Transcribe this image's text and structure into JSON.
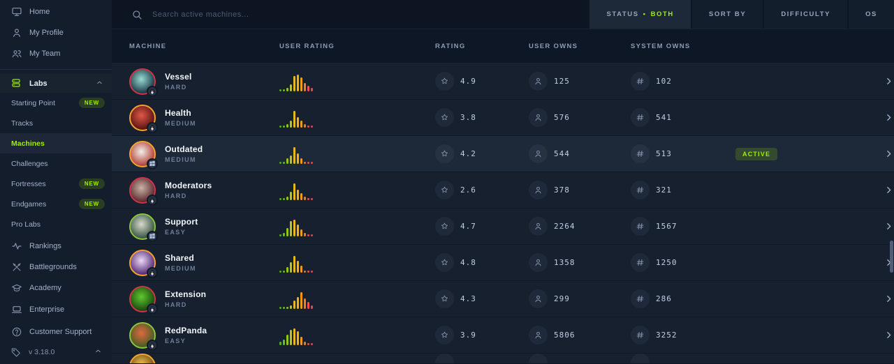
{
  "colors": {
    "accent_green": "#9fef00",
    "difficulty_ring": {
      "easy": "#8bc53f",
      "medium": "#f5a32e",
      "hard": "#d13345"
    },
    "histogram_palette": [
      "#4cb218",
      "#63c21a",
      "#8cc918",
      "#b9c51b",
      "#e5b81d",
      "#f2ae1b",
      "#f19a1c",
      "#ee7c20",
      "#e2574a",
      "#de4857"
    ]
  },
  "sidebar": {
    "top_items": [
      {
        "label": "Home",
        "icon": "monitor"
      },
      {
        "label": "My Profile",
        "icon": "user"
      },
      {
        "label": "My Team",
        "icon": "users"
      }
    ],
    "labs_header": {
      "label": "Labs",
      "icon": "labs"
    },
    "labs_items": [
      {
        "label": "Starting Point",
        "badge": "NEW"
      },
      {
        "label": "Tracks"
      },
      {
        "label": "Machines",
        "active": true
      },
      {
        "label": "Challenges"
      },
      {
        "label": "Fortresses",
        "badge": "NEW"
      },
      {
        "label": "Endgames",
        "badge": "NEW"
      },
      {
        "label": "Pro Labs"
      }
    ],
    "bottom_items": [
      {
        "label": "Rankings",
        "icon": "activity"
      },
      {
        "label": "Battlegrounds",
        "icon": "swords"
      },
      {
        "label": "Academy",
        "icon": "academy"
      },
      {
        "label": "Enterprise",
        "icon": "laptop"
      },
      {
        "label": "Customer Support",
        "icon": "help"
      }
    ],
    "version": {
      "label": "v 3.18.0",
      "icon": "tag"
    }
  },
  "topbar": {
    "search_placeholder": "Search active machines...",
    "filters": {
      "status_label": "STATUS",
      "status_separator": "•",
      "status_value": "BOTH",
      "sort_by": "SORT BY",
      "difficulty": "DIFFICULTY",
      "os": "OS"
    }
  },
  "table": {
    "headers": [
      "MACHINE",
      "USER RATING",
      "RATING",
      "USER OWNS",
      "SYSTEM OWNS"
    ],
    "rows": [
      {
        "name": "Vessel",
        "difficulty": "HARD",
        "diff_key": "hard",
        "os": "linux",
        "rating": "4.9",
        "user_owns": "125",
        "system_owns": "102",
        "active": false,
        "status_badge": "",
        "histogram": [
          1,
          1,
          2,
          4,
          9,
          10,
          8,
          5,
          3,
          2
        ],
        "art": [
          "#9adbd4",
          "#143240"
        ]
      },
      {
        "name": "Health",
        "difficulty": "MEDIUM",
        "diff_key": "medium",
        "os": "linux",
        "rating": "3.8",
        "user_owns": "576",
        "system_owns": "541",
        "active": false,
        "status_badge": "",
        "histogram": [
          1,
          1,
          2,
          4,
          10,
          6,
          4,
          2,
          1,
          1
        ],
        "art": [
          "#e0584a",
          "#54100c"
        ]
      },
      {
        "name": "Outdated",
        "difficulty": "MEDIUM",
        "diff_key": "medium",
        "os": "windows",
        "rating": "4.2",
        "user_owns": "544",
        "system_owns": "513",
        "active": true,
        "status_badge": "ACTIVE",
        "histogram": [
          1,
          1,
          3,
          5,
          10,
          6,
          3,
          1,
          1,
          1
        ],
        "art": [
          "#f2efe9",
          "#b03a30"
        ]
      },
      {
        "name": "Moderators",
        "difficulty": "HARD",
        "diff_key": "hard",
        "os": "linux",
        "rating": "2.6",
        "user_owns": "378",
        "system_owns": "321",
        "active": false,
        "status_badge": "",
        "histogram": [
          1,
          1,
          2,
          5,
          10,
          6,
          4,
          2,
          1,
          1
        ],
        "art": [
          "#c9b3a6",
          "#58232b"
        ]
      },
      {
        "name": "Support",
        "difficulty": "EASY",
        "diff_key": "easy",
        "os": "windows",
        "rating": "4.7",
        "user_owns": "2264",
        "system_owns": "1567",
        "active": false,
        "status_badge": "",
        "histogram": [
          1,
          2,
          5,
          9,
          10,
          7,
          4,
          2,
          1,
          1
        ],
        "art": [
          "#d7dbcf",
          "#32503a"
        ]
      },
      {
        "name": "Shared",
        "difficulty": "MEDIUM",
        "diff_key": "medium",
        "os": "linux",
        "rating": "4.8",
        "user_owns": "1358",
        "system_owns": "1250",
        "active": false,
        "status_badge": "",
        "histogram": [
          1,
          1,
          3,
          6,
          10,
          7,
          4,
          1,
          1,
          1
        ],
        "art": [
          "#ecd9f7",
          "#4d2470"
        ]
      },
      {
        "name": "Extension",
        "difficulty": "HARD",
        "diff_key": "hard",
        "os": "linux",
        "rating": "4.3",
        "user_owns": "299",
        "system_owns": "286",
        "active": false,
        "status_badge": "",
        "histogram": [
          1,
          1,
          1,
          2,
          5,
          7,
          10,
          6,
          4,
          2
        ],
        "art": [
          "#5fca2e",
          "#17430f"
        ]
      },
      {
        "name": "RedPanda",
        "difficulty": "EASY",
        "diff_key": "easy",
        "os": "linux",
        "rating": "3.9",
        "user_owns": "5806",
        "system_owns": "3252",
        "active": false,
        "status_badge": "",
        "histogram": [
          2,
          3,
          6,
          9,
          10,
          8,
          5,
          2,
          1,
          1
        ],
        "art": [
          "#e0693f",
          "#3f5c22"
        ]
      }
    ],
    "partial_row": {
      "diff_key": "medium",
      "art": [
        "#f0c04a",
        "#6a4a12"
      ],
      "histogram": [
        1
      ]
    }
  }
}
